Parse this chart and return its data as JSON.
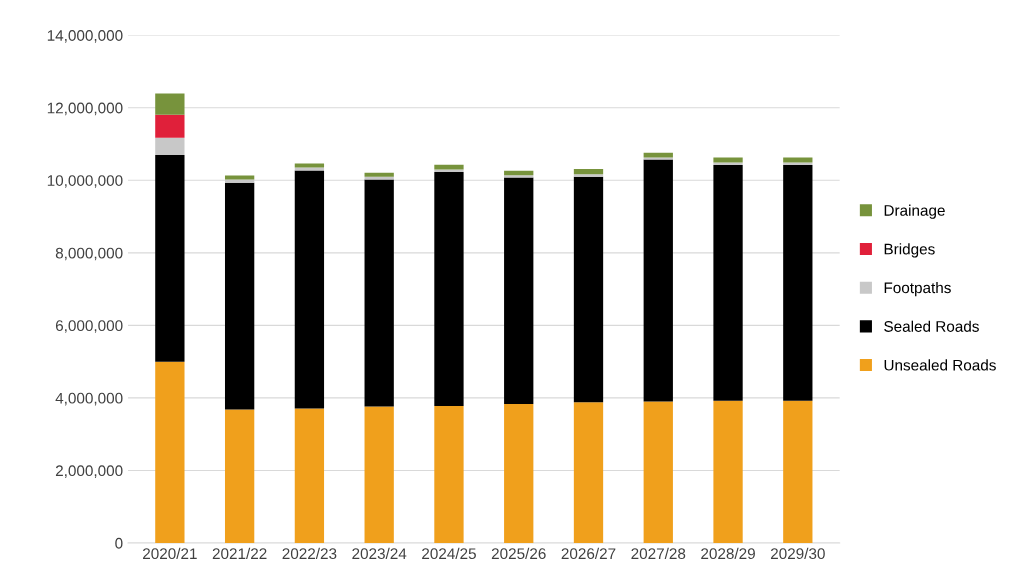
{
  "chart_data": {
    "type": "bar",
    "stacked": true,
    "categories": [
      "2020/21",
      "2021/22",
      "2022/23",
      "2023/24",
      "2024/25",
      "2025/26",
      "2026/27",
      "2027/28",
      "2028/29",
      "2029/30"
    ],
    "series": [
      {
        "name": "Unsealed Roads",
        "color": "#f0a01c",
        "values": [
          5000000,
          3680000,
          3710000,
          3760000,
          3780000,
          3830000,
          3880000,
          3900000,
          3920000,
          3920000
        ]
      },
      {
        "name": "Sealed Roads",
        "color": "#000000",
        "values": [
          5700000,
          6250000,
          6560000,
          6260000,
          6450000,
          6250000,
          6220000,
          6670000,
          6500000,
          6500000
        ]
      },
      {
        "name": "Footpaths",
        "color": "#c8c8c8",
        "values": [
          470000,
          90000,
          80000,
          80000,
          70000,
          60000,
          70000,
          60000,
          70000,
          70000
        ]
      },
      {
        "name": "Bridges",
        "color": "#e0203a",
        "values": [
          640000,
          0,
          0,
          0,
          0,
          0,
          0,
          0,
          0,
          0
        ]
      },
      {
        "name": "Drainage",
        "color": "#77933c",
        "values": [
          580000,
          110000,
          110000,
          110000,
          130000,
          120000,
          140000,
          130000,
          140000,
          140000
        ]
      }
    ],
    "ylim": [
      0,
      14000000
    ],
    "yticks": [
      {
        "value": 0,
        "label": "0"
      },
      {
        "value": 2000000,
        "label": "2,000,000"
      },
      {
        "value": 4000000,
        "label": "4,000,000"
      },
      {
        "value": 6000000,
        "label": "6,000,000"
      },
      {
        "value": 8000000,
        "label": "8,000,000"
      },
      {
        "value": 10000000,
        "label": "10,000,000"
      },
      {
        "value": 12000000,
        "label": "12,000,000"
      },
      {
        "value": 14000000,
        "label": "14,000,000"
      }
    ],
    "grid": "y",
    "legend": "right"
  }
}
